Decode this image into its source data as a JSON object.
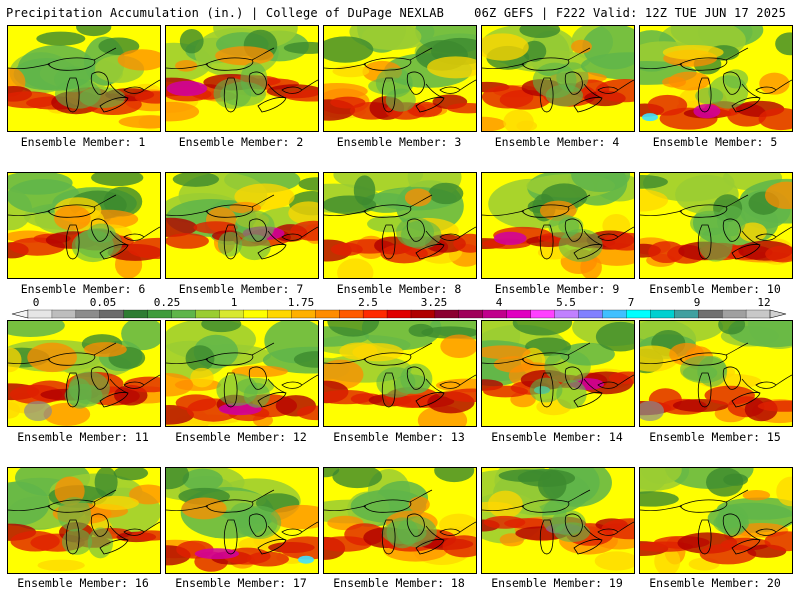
{
  "header": {
    "left_title": "Precipitation Accumulation (in.) | College of DuPage NEXLAB",
    "right_title": "06Z GEFS | F222 Valid: 12Z TUE JUN 17 2025"
  },
  "colorbar": {
    "tick_labels": [
      "0",
      "0.05",
      "0.25",
      "1",
      "1.75",
      "2.5",
      "3.25",
      "4",
      "5.5",
      "7",
      "9",
      "12"
    ],
    "colors": [
      "#e6e6e6",
      "#bdbdbd",
      "#8c8c8c",
      "#6b6b6b",
      "#2e7d32",
      "#3f9b3b",
      "#5fb54a",
      "#9acd32",
      "#d8e830",
      "#ffff00",
      "#ffd700",
      "#ffb000",
      "#ff8c00",
      "#ff5a00",
      "#ff2a00",
      "#e00000",
      "#b00000",
      "#8b0030",
      "#a0005a",
      "#c0008c",
      "#e000c0",
      "#ff40ff",
      "#c080ff",
      "#8080ff",
      "#40c0ff",
      "#00ffff",
      "#00d0d0",
      "#40a0a0",
      "#707070",
      "#a0a0a0",
      "#c8c8c8"
    ]
  },
  "map_legend_colors": {
    "green_dark": "#3c8a2e",
    "green": "#5fb54a",
    "light_green": "#9acd32",
    "yellow": "#ffff00",
    "gold": "#ffd700",
    "orange": "#ff8c00",
    "red": "#e02000",
    "dark_red": "#b00000",
    "magenta": "#d000a0",
    "cyan": "#40e0ff",
    "gray": "#8c8c8c"
  },
  "panels": [
    {
      "label": "Ensemble Member: 1"
    },
    {
      "label": "Ensemble Member: 2"
    },
    {
      "label": "Ensemble Member: 3"
    },
    {
      "label": "Ensemble Member: 4"
    },
    {
      "label": "Ensemble Member: 5"
    },
    {
      "label": "Ensemble Member: 6"
    },
    {
      "label": "Ensemble Member: 7"
    },
    {
      "label": "Ensemble Member: 8"
    },
    {
      "label": "Ensemble Member: 9"
    },
    {
      "label": "Ensemble Member: 10"
    },
    {
      "label": "Ensemble Member: 11"
    },
    {
      "label": "Ensemble Member: 12"
    },
    {
      "label": "Ensemble Member: 13"
    },
    {
      "label": "Ensemble Member: 14"
    },
    {
      "label": "Ensemble Member: 15"
    },
    {
      "label": "Ensemble Member: 16"
    },
    {
      "label": "Ensemble Member: 17"
    },
    {
      "label": "Ensemble Member: 18"
    },
    {
      "label": "Ensemble Member: 19"
    },
    {
      "label": "Ensemble Member: 20"
    }
  ]
}
